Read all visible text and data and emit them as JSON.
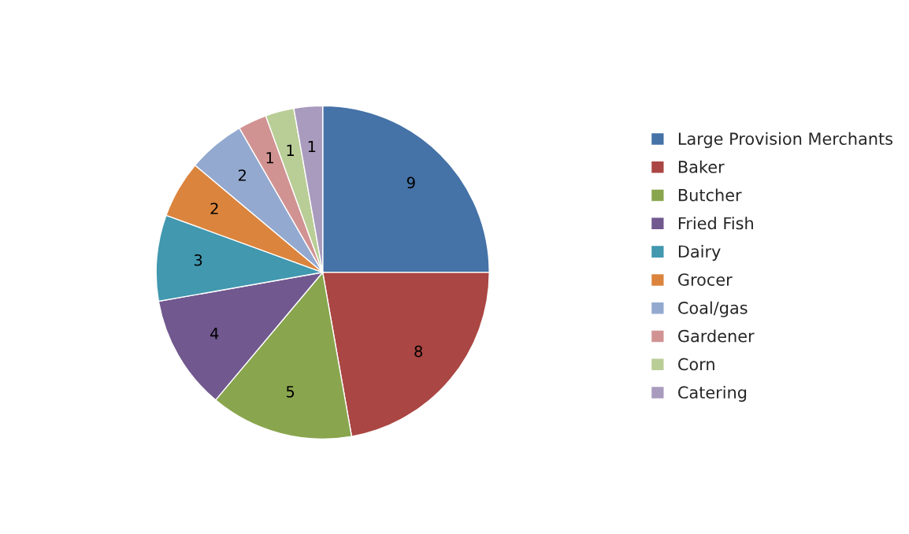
{
  "chart_data": {
    "type": "pie",
    "categories": [
      "Large Provision Merchants",
      "Baker",
      "Butcher",
      "Fried Fish",
      "Dairy",
      "Grocer",
      "Coal/gas",
      "Gardener",
      "Corn",
      "Catering"
    ],
    "values": [
      9,
      8,
      5,
      4,
      3,
      2,
      2,
      1,
      1,
      1
    ],
    "colors": [
      "#4572a7",
      "#aa4643",
      "#89a54e",
      "#71588f",
      "#4198af",
      "#db843d",
      "#93a9cf",
      "#d19392",
      "#b9cd96",
      "#a99bbd"
    ],
    "data_labels": true,
    "legend": "right"
  }
}
